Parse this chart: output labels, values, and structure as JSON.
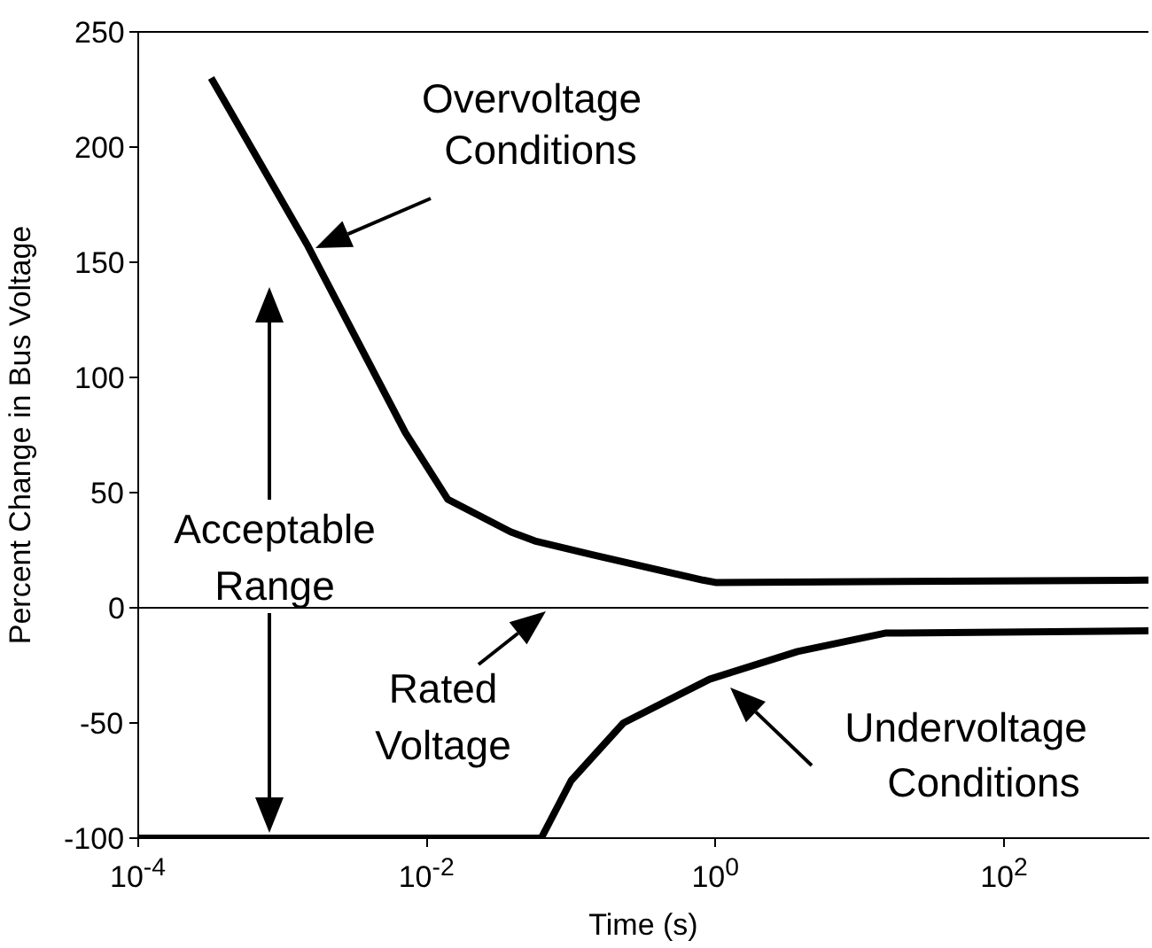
{
  "chart_data": {
    "type": "line",
    "xlabel": "Time (s)",
    "ylabel": "Percent Change in Bus Voltage",
    "log": "x",
    "xlim": [
      0.0001,
      1000
    ],
    "xticks": [
      {
        "value": 0.0001,
        "label": "10$^{-4}$"
      },
      {
        "value": 0.01,
        "label": "10$^{-2}$"
      },
      {
        "value": 1,
        "label": "10$^{0}$"
      },
      {
        "value": 100,
        "label": "10$^{2}$"
      }
    ],
    "ylim": [
      -100,
      250
    ],
    "yticks": [
      -100,
      -50,
      0,
      50,
      100,
      150,
      200,
      250
    ],
    "series": [
      {
        "color": "#000000",
        "x": [
          0.00032,
          0.0015,
          0.0071,
          0.014,
          0.038,
          0.056,
          0.14,
          0.82,
          1,
          1000
        ],
        "values": [
          230,
          157,
          76,
          47,
          33,
          29,
          23,
          12,
          11,
          12
        ]
      },
      {
        "color": "#000000",
        "x": [
          0.0001,
          0.062,
          0.1,
          0.23,
          0.91,
          3.7,
          15,
          1000
        ],
        "values": [
          -100,
          -100,
          -75,
          -50,
          -31,
          -19,
          -11,
          -10
        ]
      }
    ],
    "ref_lines": [
      {
        "axis": "y",
        "value": 0,
        "label": "Rated Voltage",
        "color": "#000000"
      }
    ],
    "annotations": [
      "Overvoltage Conditions",
      "Acceptable Range",
      "Undervoltage Conditions"
    ]
  }
}
